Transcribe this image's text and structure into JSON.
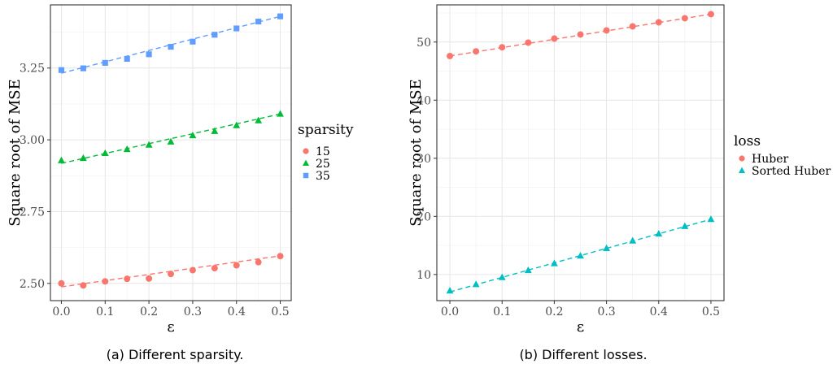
{
  "chart_data": [
    {
      "type": "line",
      "xlabel": "ε",
      "ylabel": "Square root of MSE",
      "xlim": [
        -0.025,
        0.525
      ],
      "ylim": [
        2.44,
        3.47
      ],
      "x_ticks": [
        0.0,
        0.1,
        0.2,
        0.3,
        0.4,
        0.5
      ],
      "x_tick_labels": [
        "0.0",
        "0.1",
        "0.2",
        "0.3",
        "0.4",
        "0.5"
      ],
      "y_ticks": [
        2.5,
        2.75,
        3.0,
        3.25
      ],
      "y_tick_labels": [
        "2.50",
        "2.75",
        "3.00",
        "3.25"
      ],
      "grid": true,
      "legend": {
        "title": "sparsity",
        "placement": "right"
      },
      "x": [
        0.0,
        0.05,
        0.1,
        0.15,
        0.2,
        0.25,
        0.3,
        0.35,
        0.4,
        0.45,
        0.5
      ],
      "series": [
        {
          "name": "15",
          "color": "#F8766D",
          "marker": "circle",
          "values": [
            2.5,
            2.493,
            2.507,
            2.516,
            2.517,
            2.533,
            2.546,
            2.553,
            2.563,
            2.574,
            2.595
          ],
          "fit": [
            2.488,
            2.596
          ]
        },
        {
          "name": "25",
          "color": "#00BA38",
          "marker": "triangle",
          "values": [
            2.928,
            2.936,
            2.953,
            2.967,
            2.982,
            2.993,
            3.015,
            3.03,
            3.05,
            3.067,
            3.09
          ],
          "fit": [
            2.918,
            3.09
          ]
        },
        {
          "name": "35",
          "color": "#619CFF",
          "marker": "square",
          "values": [
            3.243,
            3.249,
            3.268,
            3.282,
            3.298,
            3.324,
            3.342,
            3.366,
            3.388,
            3.412,
            3.43
          ],
          "fit": [
            3.232,
            3.43
          ]
        }
      ],
      "caption": "(a) Different sparsity."
    },
    {
      "type": "line",
      "xlabel": "ε",
      "ylabel": "Square root of MSE",
      "xlim": [
        -0.025,
        0.525
      ],
      "ylim": [
        5.5,
        56.4
      ],
      "x_ticks": [
        0.0,
        0.1,
        0.2,
        0.3,
        0.4,
        0.5
      ],
      "x_tick_labels": [
        "0.0",
        "0.1",
        "0.2",
        "0.3",
        "0.4",
        "0.5"
      ],
      "y_ticks": [
        10,
        20,
        30,
        40,
        50
      ],
      "y_tick_labels": [
        "10",
        "20",
        "30",
        "40",
        "50"
      ],
      "grid": true,
      "legend": {
        "title": "loss",
        "placement": "right"
      },
      "x": [
        0.0,
        0.05,
        0.1,
        0.15,
        0.2,
        0.25,
        0.3,
        0.35,
        0.4,
        0.45,
        0.5
      ],
      "series": [
        {
          "name": "Huber",
          "color": "#F8766D",
          "marker": "circle",
          "values": [
            47.6,
            48.4,
            49.1,
            49.9,
            50.6,
            51.3,
            52.0,
            52.7,
            53.4,
            54.1,
            54.8
          ],
          "fit": [
            47.6,
            54.8
          ]
        },
        {
          "name": "Sorted Huber",
          "color": "#00BFC4",
          "marker": "triangle",
          "values": [
            7.2,
            8.3,
            9.5,
            10.7,
            11.9,
            13.2,
            14.5,
            15.8,
            17.0,
            18.3,
            19.5
          ],
          "fit": [
            7.0,
            19.5
          ]
        }
      ],
      "caption": "(b) Different losses."
    }
  ]
}
